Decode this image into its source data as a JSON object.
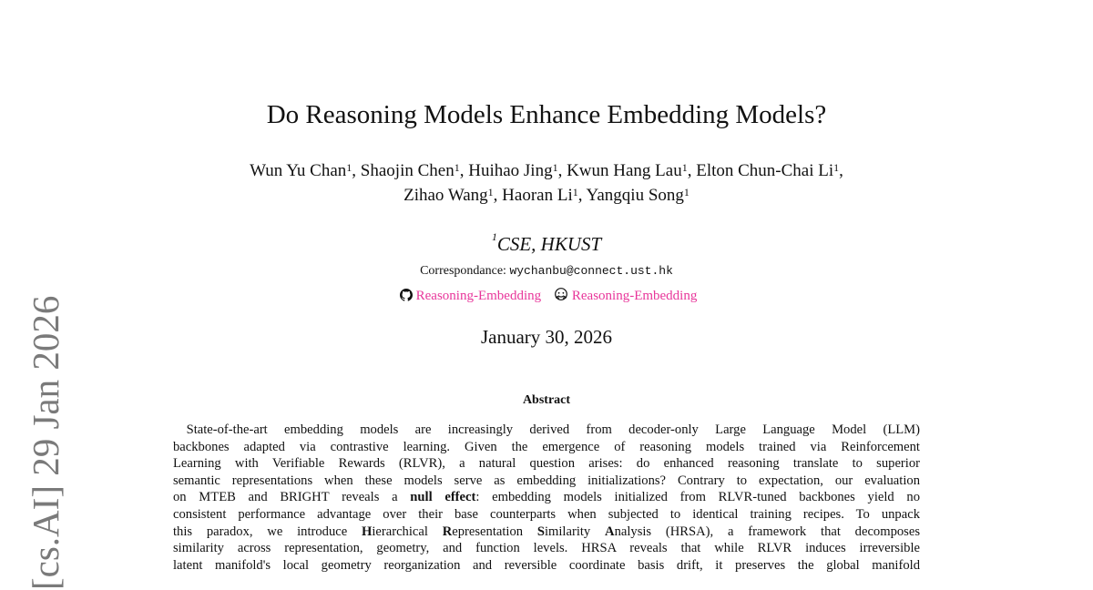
{
  "sidebar": {
    "arxiv_stamp": "[cs.AI]  29 Jan 2026"
  },
  "title": "Do Reasoning Models Enhance Embedding Models?",
  "authors_line1": [
    {
      "name": "Wun Yu Chan",
      "aff": "1"
    },
    {
      "name": "Shaojin Chen",
      "aff": "1"
    },
    {
      "name": "Huihao Jing",
      "aff": "1"
    },
    {
      "name": "Kwun Hang Lau",
      "aff": "1"
    },
    {
      "name": "Elton Chun-Chai Li",
      "aff": "1"
    }
  ],
  "authors_line2": [
    {
      "name": "Zihao Wang",
      "aff": "1"
    },
    {
      "name": "Haoran Li",
      "aff": "1"
    },
    {
      "name": "Yangqiu Song",
      "aff": "1"
    }
  ],
  "affiliation": {
    "mark": "1",
    "name": "CSE, HKUST"
  },
  "correspondence": {
    "label": "Correspondance:",
    "email": "wychanbu@connect.ust.hk"
  },
  "links": [
    {
      "icon": "github-icon",
      "label": "Reasoning-Embedding"
    },
    {
      "icon": "huggingface-icon",
      "label": "Reasoning-Embedding"
    }
  ],
  "link_color": "#e8359a",
  "date": "January 30, 2026",
  "abstract": {
    "heading": "Abstract",
    "lines": [
      " State-of-the-art embedding models are increasingly derived from decoder-only Large Language Model (LLM)",
      "backbones adapted via contrastive learning.  Given the emergence of reasoning models trained via Reinforcement",
      "Learning with Verifiable Rewards (RLVR), a natural question arises:  do enhanced reasoning translate to superior",
      "semantic representations when these models serve as embedding initializations? Contrary to expectation, our evaluation",
      "on MTEB and BRIGHT reveals a null effect: embedding models initialized from RLVR-tuned backbones yield no",
      "consistent performance advantage over their base counterparts when subjected to identical training recipes. To unpack",
      "this paradox, we introduce Hierarchical Representation Similarity Analysis (HRSA), a framework that decomposes",
      "similarity across representation, geometry, and function levels. HRSA reveals that while RLVR induces irreversible",
      "latent manifold's local geometry reorganization and reversible coordinate basis drift, it preserves the global manifold"
    ]
  }
}
